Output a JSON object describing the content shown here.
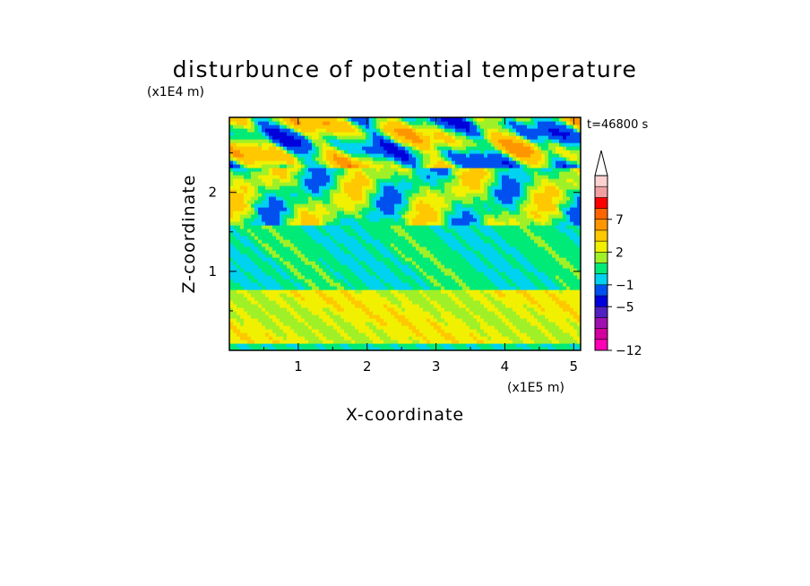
{
  "chart_data": {
    "type": "heatmap",
    "title": "disturbunce of potential temperature",
    "y_scale_label": "(x1E4 m)",
    "x_scale_label": "(x1E5 m)",
    "xlabel": "X-coordinate",
    "ylabel": "Z-coordinate",
    "time_label": "t=46800 s",
    "xlim": [
      0,
      5.1
    ],
    "ylim": [
      0,
      2.95
    ],
    "x_ticks": [
      {
        "value": 1,
        "label": "1"
      },
      {
        "value": 2,
        "label": "2"
      },
      {
        "value": 3,
        "label": "3"
      },
      {
        "value": 4,
        "label": "4"
      },
      {
        "value": 5,
        "label": "5"
      }
    ],
    "y_ticks": [
      {
        "value": 1,
        "label": "1"
      },
      {
        "value": 2,
        "label": "2"
      }
    ],
    "colorbar": {
      "levels": [
        -12,
        -10,
        -8,
        -6,
        -5,
        -3,
        -1,
        0,
        1,
        2,
        3,
        5,
        7,
        8,
        9,
        10
      ],
      "colors": [
        "#ff00b4",
        "#d2009c",
        "#a010b0",
        "#5020c0",
        "#0000dc",
        "#0050f0",
        "#00d2f0",
        "#00ea78",
        "#a0f028",
        "#f0f000",
        "#ffc800",
        "#ff9600",
        "#ff6400",
        "#ff0000",
        "#f0a0a0",
        "#ffd2d2"
      ],
      "tick_labels": [
        {
          "level": -12,
          "label": "−12"
        },
        {
          "level": -5,
          "label": "−5"
        },
        {
          "level": -1,
          "label": "−1"
        },
        {
          "level": 2,
          "label": "2"
        },
        {
          "level": 7,
          "label": "7"
        }
      ],
      "extend": "max"
    },
    "field_summary": [
      {
        "z_range": [
          0.0,
          0.1
        ],
        "value_range": [
          -1,
          1
        ]
      },
      {
        "z_range": [
          0.1,
          0.75
        ],
        "value_range": [
          2,
          3
        ]
      },
      {
        "z_range": [
          0.75,
          1.6
        ],
        "value_range": [
          -1,
          1
        ]
      },
      {
        "z_range": [
          1.6,
          2.3
        ],
        "value_range": [
          -1,
          3
        ]
      },
      {
        "z_range": [
          2.3,
          2.95
        ],
        "value_range": [
          -5,
          7
        ]
      }
    ]
  }
}
